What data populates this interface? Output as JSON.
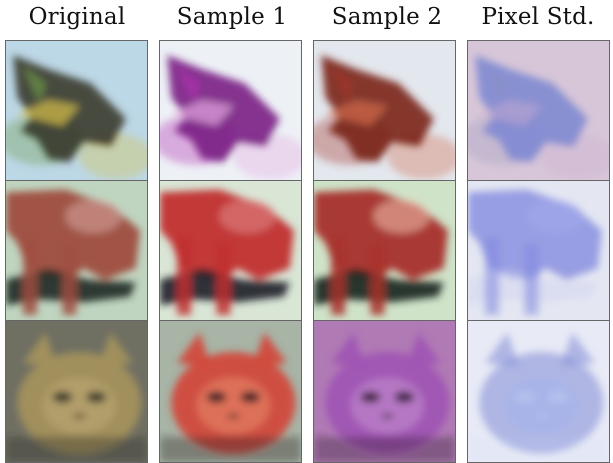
{
  "headers": [
    "Original",
    "Sample 1",
    "Sample 2",
    "Pixel Std."
  ],
  "rows": [
    {
      "subject": "frog",
      "tiles": [
        {
          "col": "original",
          "bg": "#bcd7e6",
          "fg": "#3a3a2c",
          "accent": "#d8c24a",
          "accent2": "#6f9a4a"
        },
        {
          "col": "sample1",
          "bg": "#edf1f6",
          "fg": "#7a1f84",
          "accent": "#e4a6e0",
          "accent2": "#b12fb1"
        },
        {
          "col": "sample2",
          "bg": "#e3e7ee",
          "fg": "#7a2418",
          "accent": "#d26a4a",
          "accent2": "#a23525"
        },
        {
          "col": "pixel_std",
          "bg": "#d7c6d8",
          "fg": "#7b86d1",
          "accent": "#c8a9cf",
          "accent2": "#8a8fb6"
        }
      ]
    },
    {
      "subject": "horse",
      "tiles": [
        {
          "col": "original",
          "bg": "#bfd5c0",
          "fg": "#9f4d3f",
          "accent": "#1e2a24",
          "accent2": "#d7a7a2"
        },
        {
          "col": "sample1",
          "bg": "#d9e6d6",
          "fg": "#c12f2f",
          "accent": "#1e1e2a",
          "accent2": "#e38b8b"
        },
        {
          "col": "sample2",
          "bg": "#cfe3c9",
          "fg": "#a8302a",
          "accent": "#1a2620",
          "accent2": "#f0c2b1"
        },
        {
          "col": "pixel_std",
          "bg": "#e4e7f2",
          "fg": "#7f86de",
          "accent": "#c9c9ee",
          "accent2": "#a8b0f2"
        }
      ]
    },
    {
      "subject": "cat",
      "tiles": [
        {
          "col": "original",
          "bg": "#6f6f62",
          "fg": "#a3915d",
          "accent": "#2d2b26",
          "accent2": "#c5b07a"
        },
        {
          "col": "sample1",
          "bg": "#a7b4a6",
          "fg": "#d24a3b",
          "accent": "#2a1b22",
          "accent2": "#f09a78"
        },
        {
          "col": "sample2",
          "bg": "#b07ab4",
          "fg": "#a054b4",
          "accent": "#2e1b2f",
          "accent2": "#cfa0d6"
        },
        {
          "col": "pixel_std",
          "bg": "#e8eaf6",
          "fg": "#7f8ad6",
          "accent": "#c9d9f5",
          "accent2": "#9fb1f0"
        }
      ]
    }
  ]
}
